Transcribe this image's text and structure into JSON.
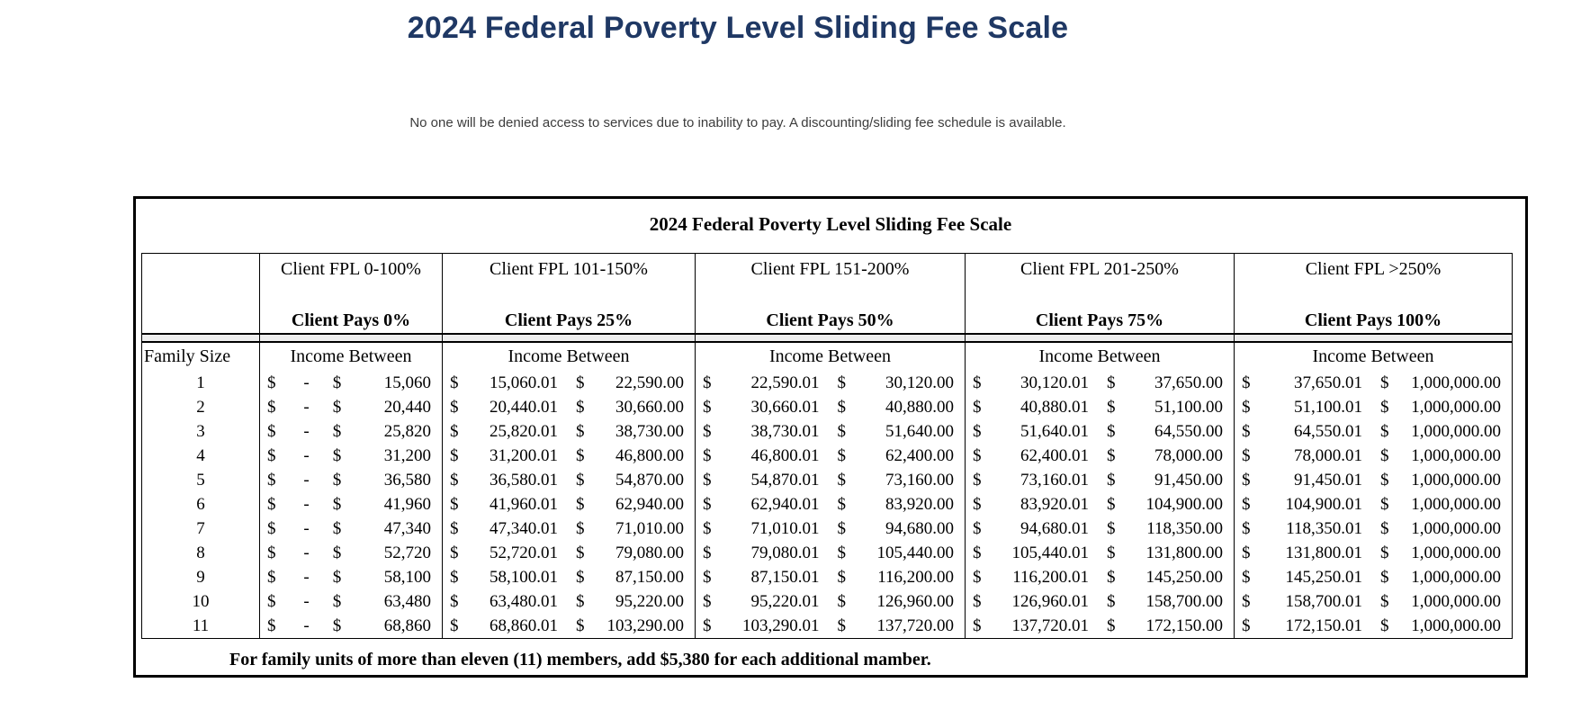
{
  "page": {
    "title": "2024 Federal Poverty Level Sliding Fee Scale",
    "subtitle": "No one will be denied access to services due to inability to pay. A discounting/sliding fee schedule is available."
  },
  "colors": {
    "title": "#1f3864",
    "band": "#eeeeee",
    "border": "#000000"
  },
  "table": {
    "title": "2024 Federal Poverty Level Sliding Fee Scale",
    "family_size_label": "Family Size",
    "income_between_label": "Income Between",
    "currency": "$",
    "brackets": [
      {
        "fpl": "Client FPL 0-100%",
        "pays": "Client Pays 0%"
      },
      {
        "fpl": "Client FPL 101-150%",
        "pays": "Client Pays 25%"
      },
      {
        "fpl": "Client FPL 151-200%",
        "pays": "Client Pays 50%"
      },
      {
        "fpl": "Client FPL 201-250%",
        "pays": "Client Pays 75%"
      },
      {
        "fpl": "Client FPL >250%",
        "pays": "Client Pays 100%"
      }
    ],
    "rows": [
      {
        "size": "1",
        "cells": [
          [
            "-",
            "15,060"
          ],
          [
            "15,060.01",
            "22,590.00"
          ],
          [
            "22,590.01",
            "30,120.00"
          ],
          [
            "30,120.01",
            "37,650.00"
          ],
          [
            "37,650.01",
            "1,000,000.00"
          ]
        ]
      },
      {
        "size": "2",
        "cells": [
          [
            "-",
            "20,440"
          ],
          [
            "20,440.01",
            "30,660.00"
          ],
          [
            "30,660.01",
            "40,880.00"
          ],
          [
            "40,880.01",
            "51,100.00"
          ],
          [
            "51,100.01",
            "1,000,000.00"
          ]
        ]
      },
      {
        "size": "3",
        "cells": [
          [
            "-",
            "25,820"
          ],
          [
            "25,820.01",
            "38,730.00"
          ],
          [
            "38,730.01",
            "51,640.00"
          ],
          [
            "51,640.01",
            "64,550.00"
          ],
          [
            "64,550.01",
            "1,000,000.00"
          ]
        ]
      },
      {
        "size": "4",
        "cells": [
          [
            "-",
            "31,200"
          ],
          [
            "31,200.01",
            "46,800.00"
          ],
          [
            "46,800.01",
            "62,400.00"
          ],
          [
            "62,400.01",
            "78,000.00"
          ],
          [
            "78,000.01",
            "1,000,000.00"
          ]
        ]
      },
      {
        "size": "5",
        "cells": [
          [
            "-",
            "36,580"
          ],
          [
            "36,580.01",
            "54,870.00"
          ],
          [
            "54,870.01",
            "73,160.00"
          ],
          [
            "73,160.01",
            "91,450.00"
          ],
          [
            "91,450.01",
            "1,000,000.00"
          ]
        ]
      },
      {
        "size": "6",
        "cells": [
          [
            "-",
            "41,960"
          ],
          [
            "41,960.01",
            "62,940.00"
          ],
          [
            "62,940.01",
            "83,920.00"
          ],
          [
            "83,920.01",
            "104,900.00"
          ],
          [
            "104,900.01",
            "1,000,000.00"
          ]
        ]
      },
      {
        "size": "7",
        "cells": [
          [
            "-",
            "47,340"
          ],
          [
            "47,340.01",
            "71,010.00"
          ],
          [
            "71,010.01",
            "94,680.00"
          ],
          [
            "94,680.01",
            "118,350.00"
          ],
          [
            "118,350.01",
            "1,000,000.00"
          ]
        ]
      },
      {
        "size": "8",
        "cells": [
          [
            "-",
            "52,720"
          ],
          [
            "52,720.01",
            "79,080.00"
          ],
          [
            "79,080.01",
            "105,440.00"
          ],
          [
            "105,440.01",
            "131,800.00"
          ],
          [
            "131,800.01",
            "1,000,000.00"
          ]
        ]
      },
      {
        "size": "9",
        "cells": [
          [
            "-",
            "58,100"
          ],
          [
            "58,100.01",
            "87,150.00"
          ],
          [
            "87,150.01",
            "116,200.00"
          ],
          [
            "116,200.01",
            "145,250.00"
          ],
          [
            "145,250.01",
            "1,000,000.00"
          ]
        ]
      },
      {
        "size": "10",
        "cells": [
          [
            "-",
            "63,480"
          ],
          [
            "63,480.01",
            "95,220.00"
          ],
          [
            "95,220.01",
            "126,960.00"
          ],
          [
            "126,960.01",
            "158,700.00"
          ],
          [
            "158,700.01",
            "1,000,000.00"
          ]
        ]
      },
      {
        "size": "11",
        "cells": [
          [
            "-",
            "68,860"
          ],
          [
            "68,860.01",
            "103,290.00"
          ],
          [
            "103,290.01",
            "137,720.00"
          ],
          [
            "137,720.01",
            "172,150.00"
          ],
          [
            "172,150.01",
            "1,000,000.00"
          ]
        ]
      }
    ],
    "footnote": "For family units of more than eleven (11) members, add $5,380 for each additional mamber."
  }
}
